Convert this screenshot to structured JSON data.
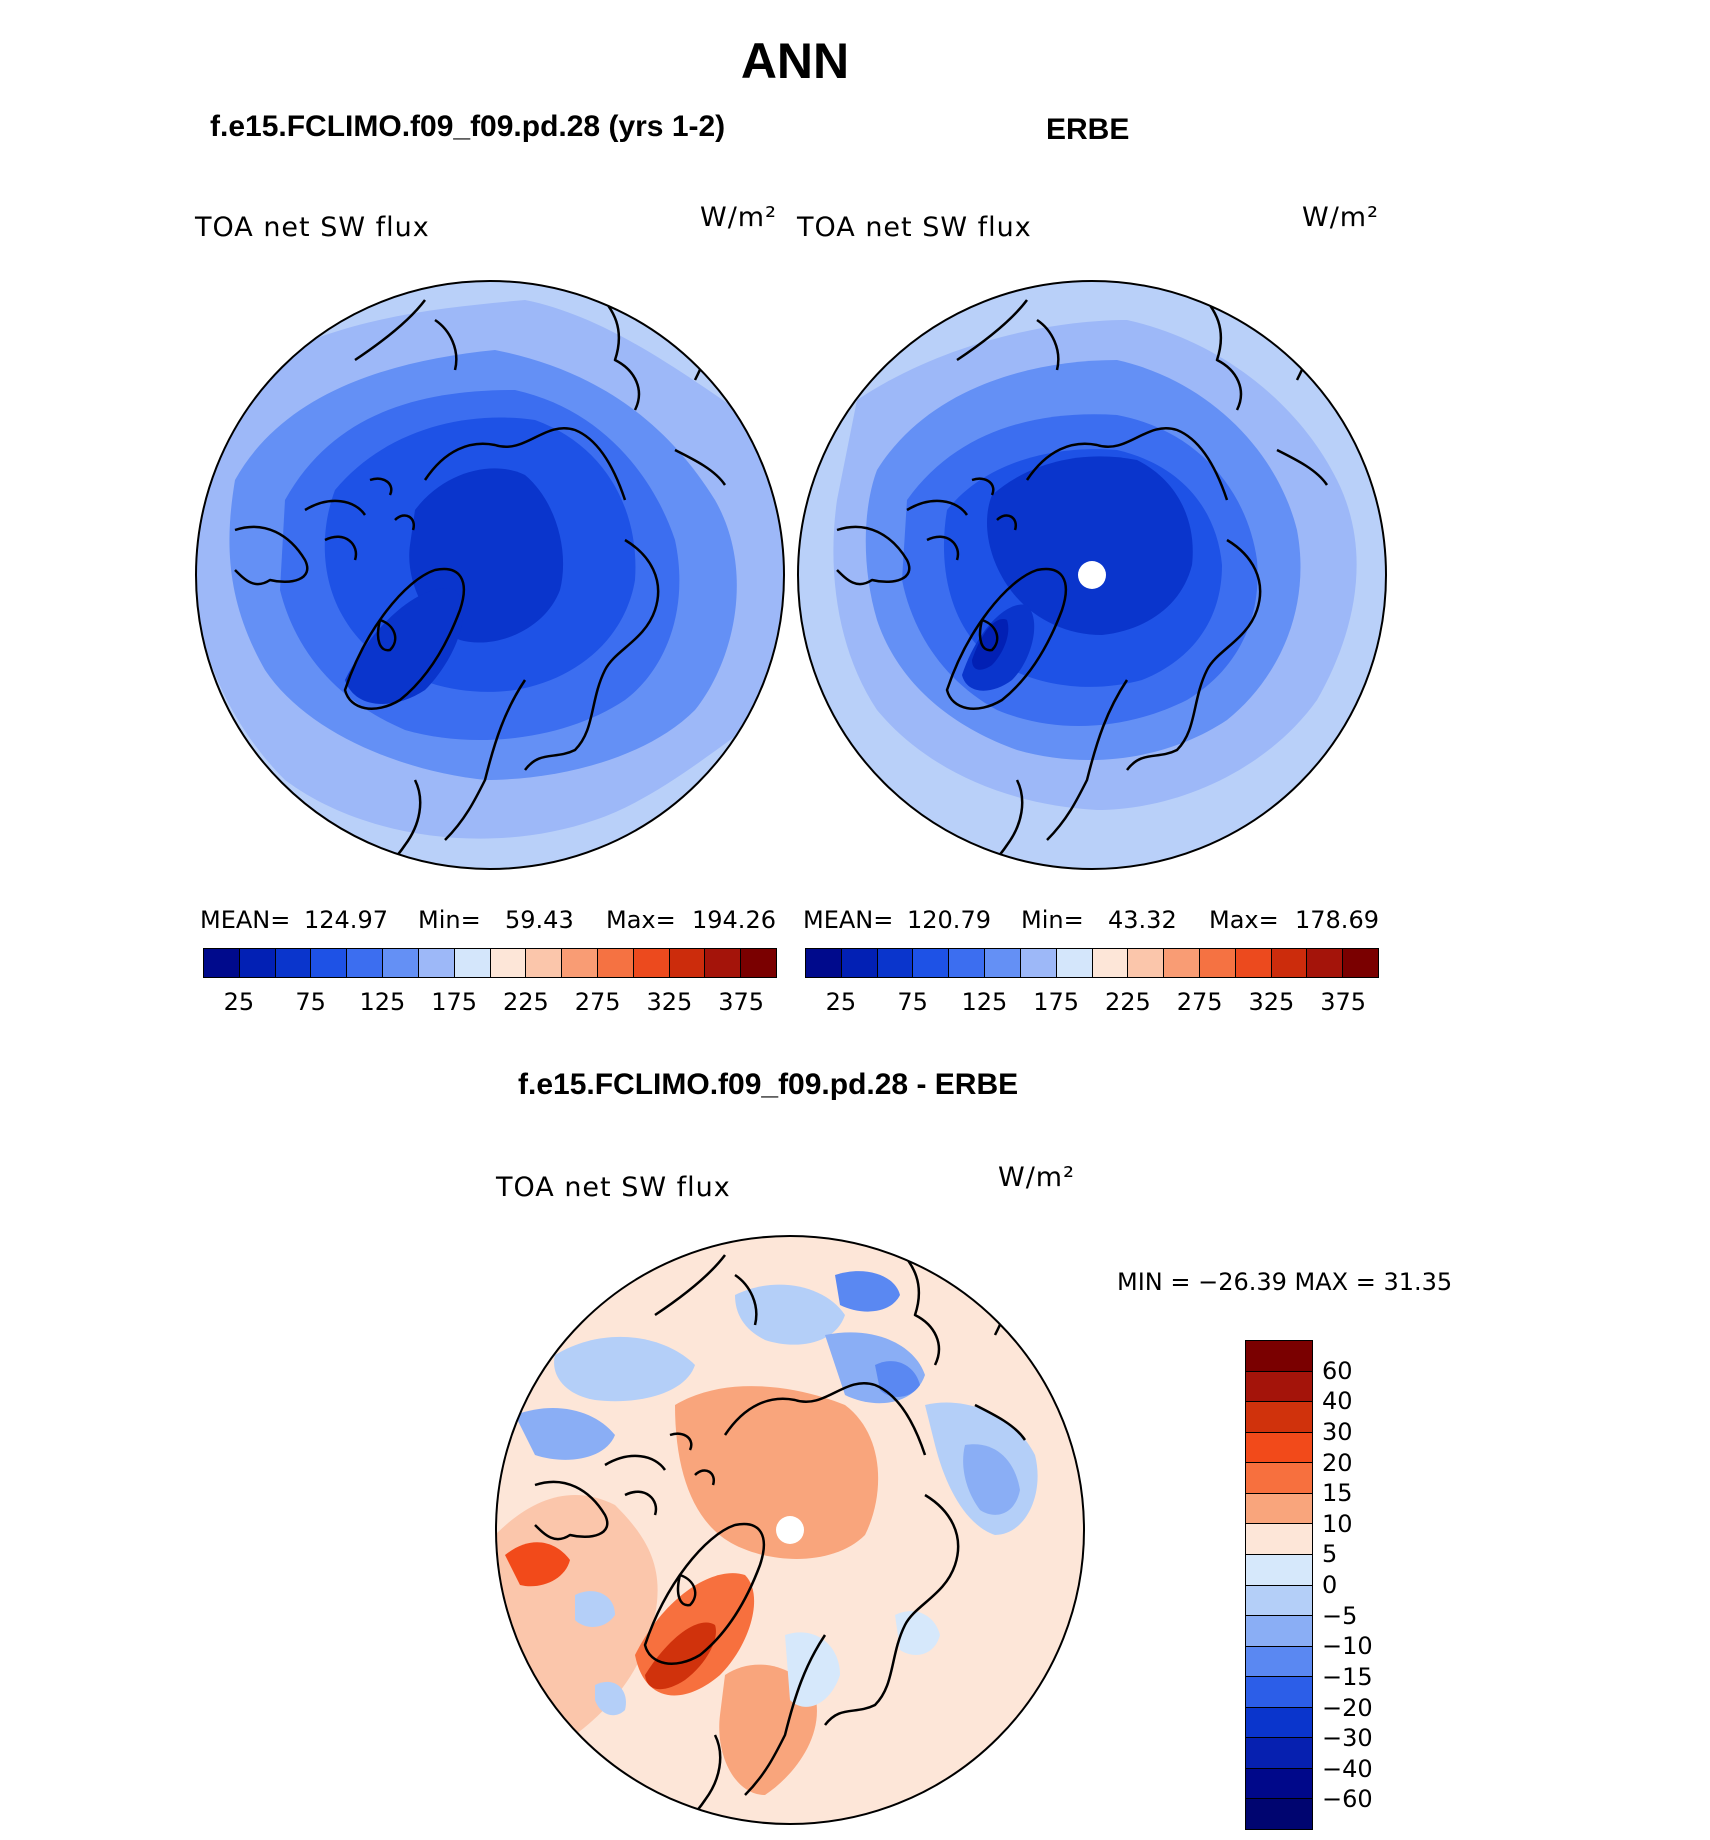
{
  "figure": {
    "season": "ANN"
  },
  "panels": {
    "model": {
      "title": "f.e15.FCLIMO.f09_f09.pd.28 (yrs 1-2)",
      "variable": "TOA net SW flux",
      "units": "W/m²",
      "mean_label": "MEAN=",
      "mean": "124.97",
      "min_label": "Min=",
      "min": "59.43",
      "max_label": "Max=",
      "max": "194.26"
    },
    "obs": {
      "title": "ERBE",
      "variable": "TOA net SW flux",
      "units": "W/m²",
      "mean_label": "MEAN=",
      "mean": "120.79",
      "min_label": "Min=",
      "min": "43.32",
      "max_label": "Max=",
      "max": "178.69"
    },
    "diff": {
      "title": "f.e15.FCLIMO.f09_f09.pd.28 - ERBE",
      "variable": "TOA net SW flux",
      "units": "W/m²",
      "minmax": "MIN = −26.39 MAX =   31.35"
    }
  },
  "colorbars": {
    "abs": {
      "tick_labels": [
        "25",
        "75",
        "125",
        "175",
        "225",
        "275",
        "325",
        "375"
      ],
      "colors": [
        "#000a8c",
        "#0220b4",
        "#0a35cc",
        "#1e52e6",
        "#3c6ef0",
        "#6490f5",
        "#9db8f8",
        "#d4e6fb",
        "#fde6d8",
        "#fbc6ab",
        "#f99c74",
        "#f57242",
        "#ec4a1e",
        "#cc2c0c",
        "#a4140a",
        "#7a0000"
      ]
    },
    "diff": {
      "tick_labels": [
        "60",
        "40",
        "30",
        "20",
        "15",
        "10",
        "5",
        "0",
        "−5",
        "−10",
        "−15",
        "−20",
        "−30",
        "−40",
        "−60"
      ],
      "colors": [
        "#7a0000",
        "#a4140a",
        "#d0320c",
        "#f24a1a",
        "#f7703e",
        "#f9a57c",
        "#fde6d8",
        "#d6e8fb",
        "#b4cff8",
        "#8aaef5",
        "#5a88f2",
        "#2c5ee8",
        "#0a35cc",
        "#0620b0",
        "#00088a",
        "#000570"
      ]
    }
  }
}
